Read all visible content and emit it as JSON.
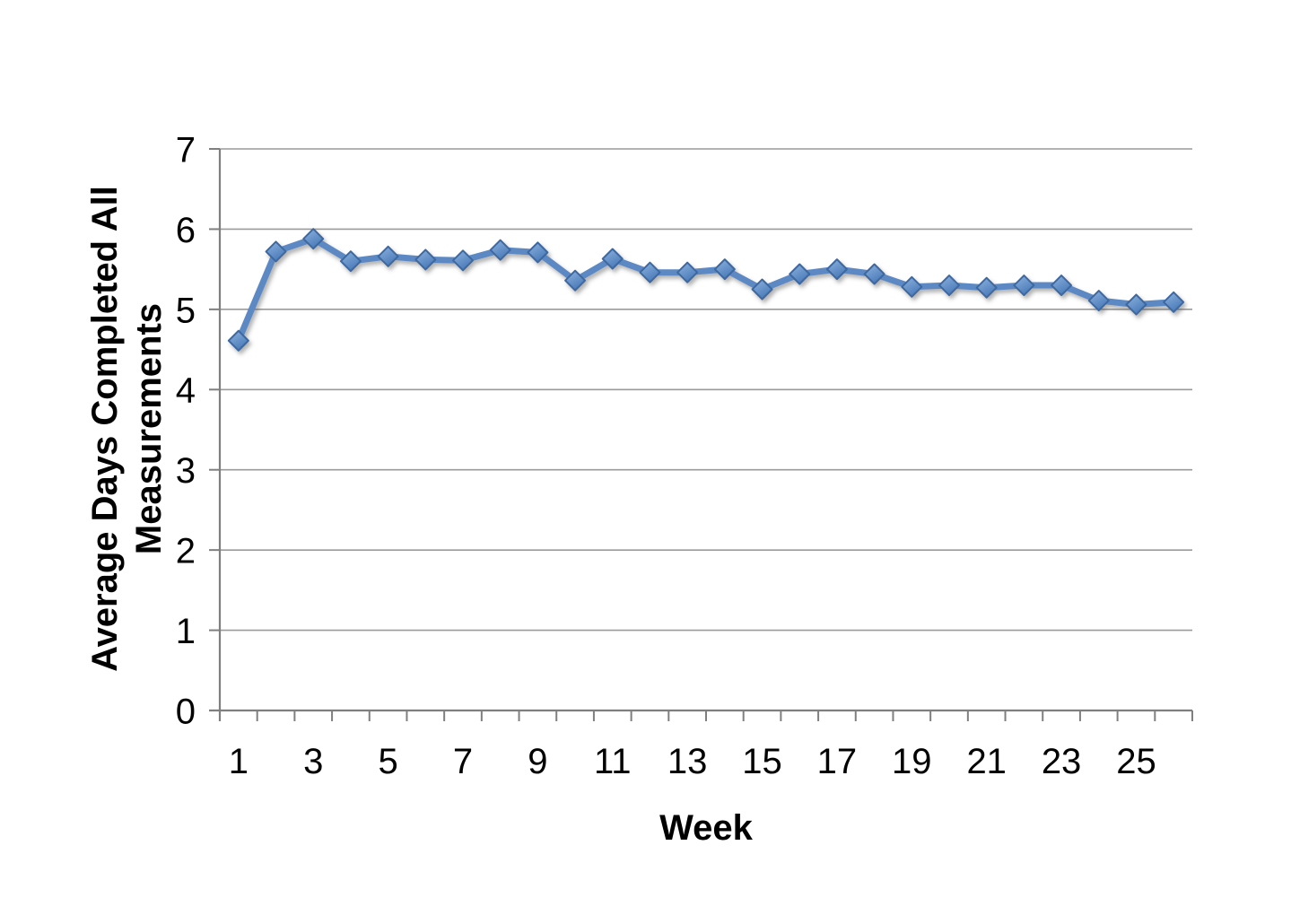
{
  "chart_data": {
    "type": "line",
    "title": "",
    "xlabel": "Week",
    "ylabel_line1": "Average Days Completed All",
    "ylabel_line2": "Measurements",
    "series": [
      {
        "name": "Average Days Completed All Measurements",
        "x": [
          1,
          2,
          3,
          4,
          5,
          6,
          7,
          8,
          9,
          10,
          11,
          12,
          13,
          14,
          15,
          16,
          17,
          18,
          19,
          20,
          21,
          22,
          23,
          24,
          25,
          26
        ],
        "values": [
          4.61,
          5.72,
          5.88,
          5.6,
          5.66,
          5.62,
          5.61,
          5.74,
          5.71,
          5.36,
          5.63,
          5.46,
          5.46,
          5.5,
          5.25,
          5.44,
          5.5,
          5.44,
          5.28,
          5.3,
          5.27,
          5.3,
          5.3,
          5.11,
          5.06,
          5.09
        ]
      }
    ],
    "xlim": [
      0,
      26
    ],
    "ylim": [
      0,
      7
    ],
    "ytick_labels": [
      "0",
      "1",
      "2",
      "3",
      "4",
      "5",
      "6",
      "7"
    ],
    "xtick_labels": [
      "1",
      "3",
      "5",
      "7",
      "9",
      "11",
      "13",
      "15",
      "17",
      "19",
      "21",
      "23",
      "25"
    ],
    "xtick_weeks": [
      1,
      3,
      5,
      7,
      9,
      11,
      13,
      15,
      17,
      19,
      21,
      23,
      25
    ],
    "grid": "horizontal-on",
    "legend": "none",
    "marker": "diamond"
  },
  "style": {
    "line_color": "#5b88c4",
    "marker_fill_light": "#8fb4e0",
    "marker_fill_dark": "#4a7ab8",
    "marker_stroke": "#3e68a0",
    "grid_color": "#9a9a9a",
    "axis_color": "#7f7f7f",
    "text_color": "#000000",
    "background_color": "#ffffff"
  }
}
